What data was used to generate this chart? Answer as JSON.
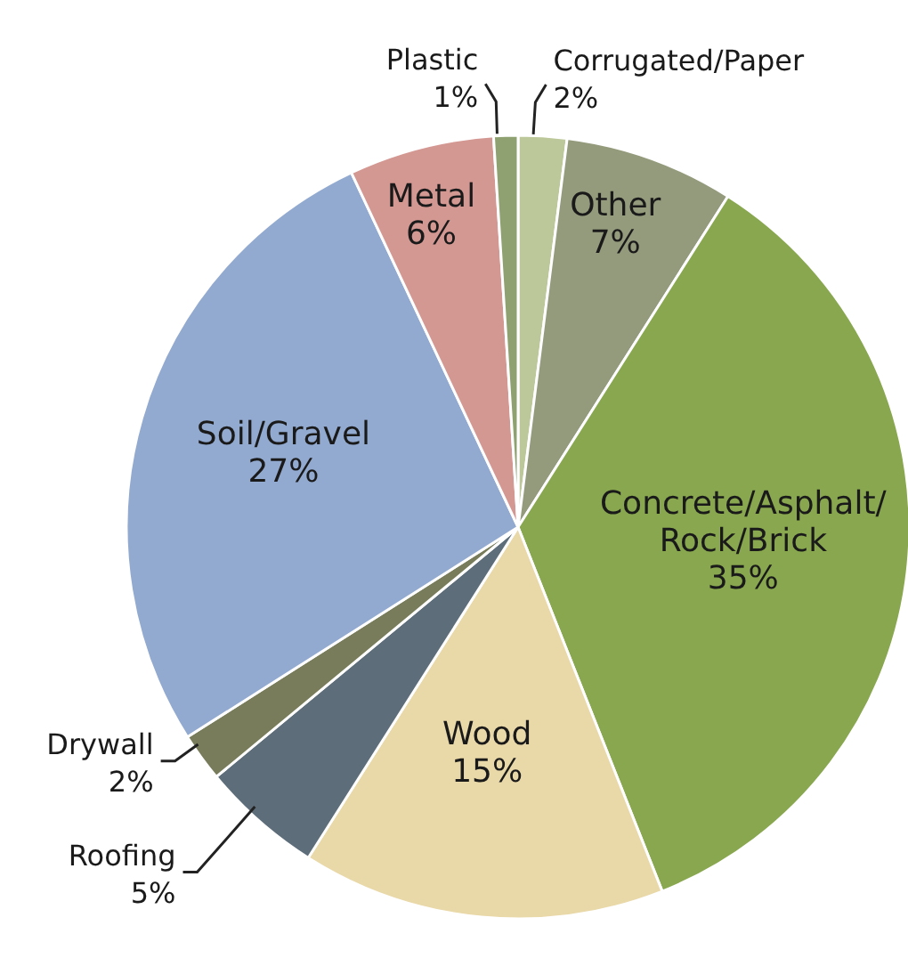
{
  "chart_data": {
    "type": "pie",
    "categories": [
      "Corrugated/Paper",
      "Other",
      "Concrete/Asphalt/Rock/Brick",
      "Wood",
      "Roofing",
      "Drywall",
      "Soil/Gravel",
      "Metal",
      "Plastic"
    ],
    "values": [
      2,
      7,
      35,
      15,
      5,
      2,
      27,
      6,
      1
    ],
    "value_labels": [
      "2%",
      "7%",
      "35%",
      "15%",
      "5%",
      "2%",
      "27%",
      "6%",
      "1%"
    ],
    "colors": [
      "#bcc89a",
      "#949b7c",
      "#88a74f",
      "#e9d8a8",
      "#5e6d7a",
      "#787c5a",
      "#93aad0",
      "#d49893",
      "#8fa170"
    ],
    "legend": false
  }
}
